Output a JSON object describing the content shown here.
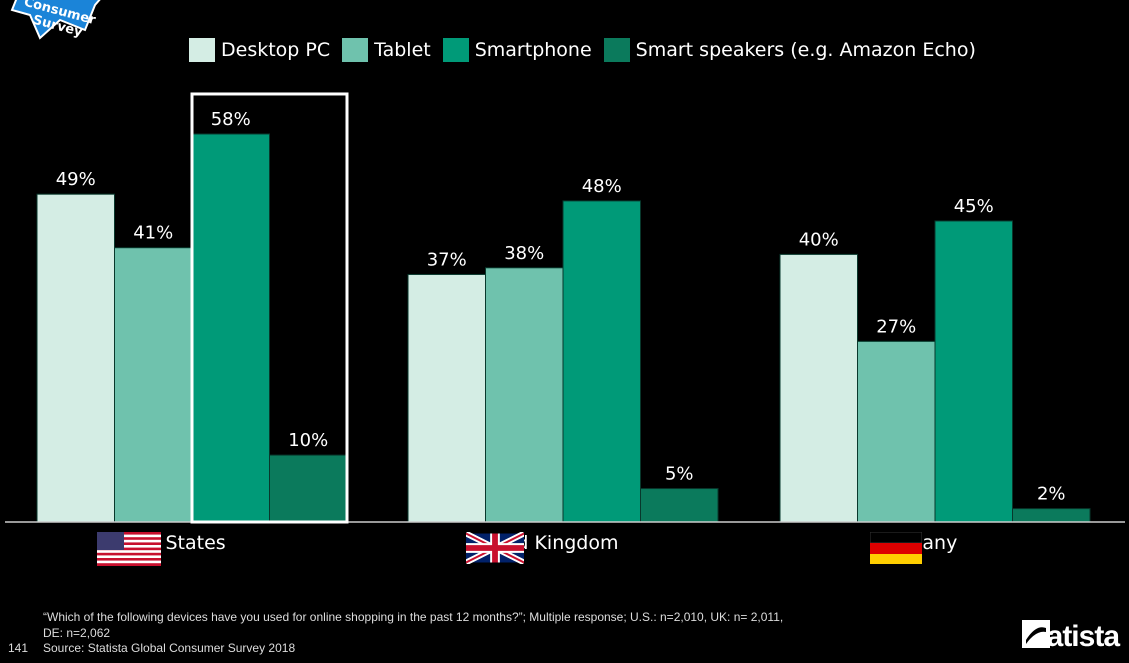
{
  "chart_data": {
    "type": "bar",
    "categories": [
      "United States",
      "United Kingdom",
      "Germany"
    ],
    "series": [
      {
        "name": "Desktop PC",
        "values": [
          49,
          37,
          40
        ],
        "color": "#d4ede4"
      },
      {
        "name": "Tablet",
        "values": [
          41,
          38,
          27
        ],
        "color": "#6fc2ad"
      },
      {
        "name": "Smartphone",
        "values": [
          58,
          48,
          45
        ],
        "color": "#009a78"
      },
      {
        "name": "Smart speakers (e.g. Amazon Echo)",
        "values": [
          10,
          5,
          2
        ],
        "color": "#0b7a5c"
      }
    ],
    "unit": "%",
    "ylim": [
      0,
      60
    ],
    "grid": false,
    "legend_placement": "top",
    "highlight": {
      "category": "United States",
      "series": [
        "Smartphone",
        "Smart speakers (e.g. Amazon Echo)"
      ]
    }
  },
  "footnote": "“Which of the following devices have you used for online shopping in the past 12 months?”; Multiple response; U.S.: n=2,010, UK: n= 2,011,",
  "footnote2": "DE: n=2,062",
  "source": "Source: Statista Global Consumer Survey 2018",
  "page_number": "141",
  "logo": "statista",
  "badge": "Consumer Survey",
  "flags": [
    "us-flag",
    "uk-flag",
    "germany-flag"
  ]
}
